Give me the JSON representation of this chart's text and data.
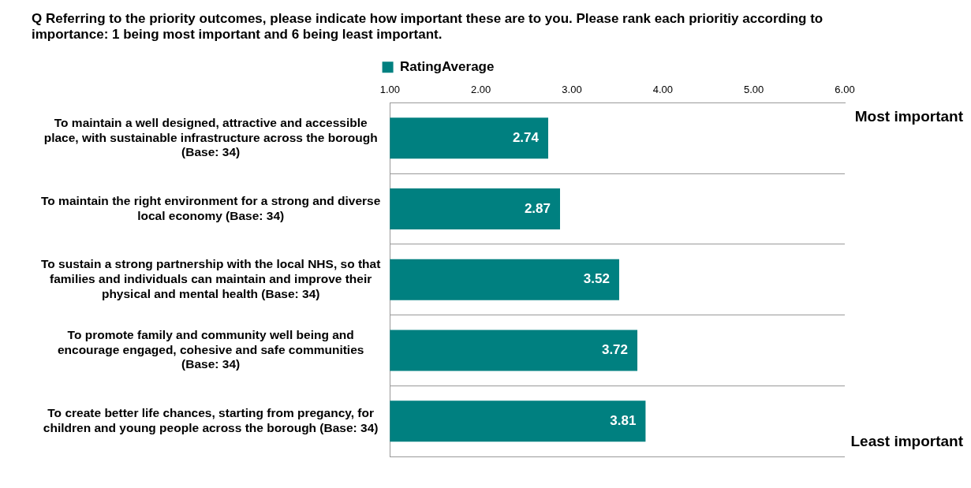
{
  "chart_data": {
    "type": "bar",
    "orientation": "horizontal",
    "title": "Q Referring to the priority outcomes, please indicate how important these are to you. Please rank each prioritiy according to importance: 1 being most important and 6 being least important.",
    "categories": [
      "To maintain a well designed, attractive and accessible place, with sustainable infrastructure across the borough (Base: 34)",
      "To maintain the right environment for a strong and diverse local economy (Base: 34)",
      "To sustain a strong partnership with the local NHS, so that families and individuals can maintain and improve their physical and mental health (Base: 34)",
      "To promote family and community well being and encourage engaged, cohesive and safe communities (Base: 34)",
      "To create better life chances, starting from pregancy, for children and young people across the borough (Base: 34)"
    ],
    "series": [
      {
        "name": "RatingAverage",
        "color": "#008080",
        "values": [
          2.74,
          2.87,
          3.52,
          3.72,
          3.81
        ]
      }
    ],
    "xlim": [
      1,
      6
    ],
    "xticks": [
      {
        "value": 1,
        "label": "1.00"
      },
      {
        "value": 2,
        "label": "2.00"
      },
      {
        "value": 3,
        "label": "3.00"
      },
      {
        "value": 4,
        "label": "4.00"
      },
      {
        "value": 5,
        "label": "5.00"
      },
      {
        "value": 6,
        "label": "6.00"
      }
    ],
    "data_labels": true,
    "grid": "y",
    "legend": "top",
    "annotations": [
      "Most important",
      "Least important"
    ]
  }
}
